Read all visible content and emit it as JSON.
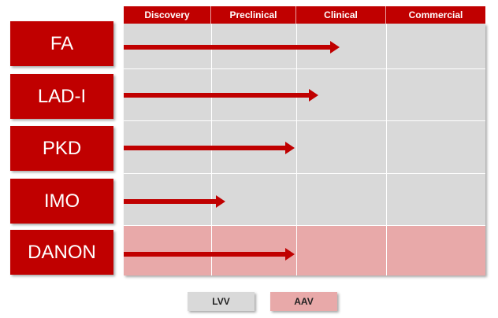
{
  "stages": [
    "Discovery",
    "Preclinical",
    "Clinical",
    "Commercial"
  ],
  "programs": [
    {
      "name": "FA",
      "vector": "LVV",
      "progress": 0.598
    },
    {
      "name": "LAD-I",
      "vector": "LVV",
      "progress": 0.538
    },
    {
      "name": "PKD",
      "vector": "LVV",
      "progress": 0.473
    },
    {
      "name": "IMO",
      "vector": "LVV",
      "progress": 0.281
    },
    {
      "name": "DANON",
      "vector": "AAV",
      "progress": 0.473
    }
  ],
  "legend": [
    {
      "label": "LVV",
      "color": "#d9d9d9"
    },
    {
      "label": "AAV",
      "color": "#e8a9a9"
    }
  ],
  "colors": {
    "accent": "#c00000",
    "lvv_row": "#d9d9d9",
    "aav_row": "#e8a9a9"
  }
}
